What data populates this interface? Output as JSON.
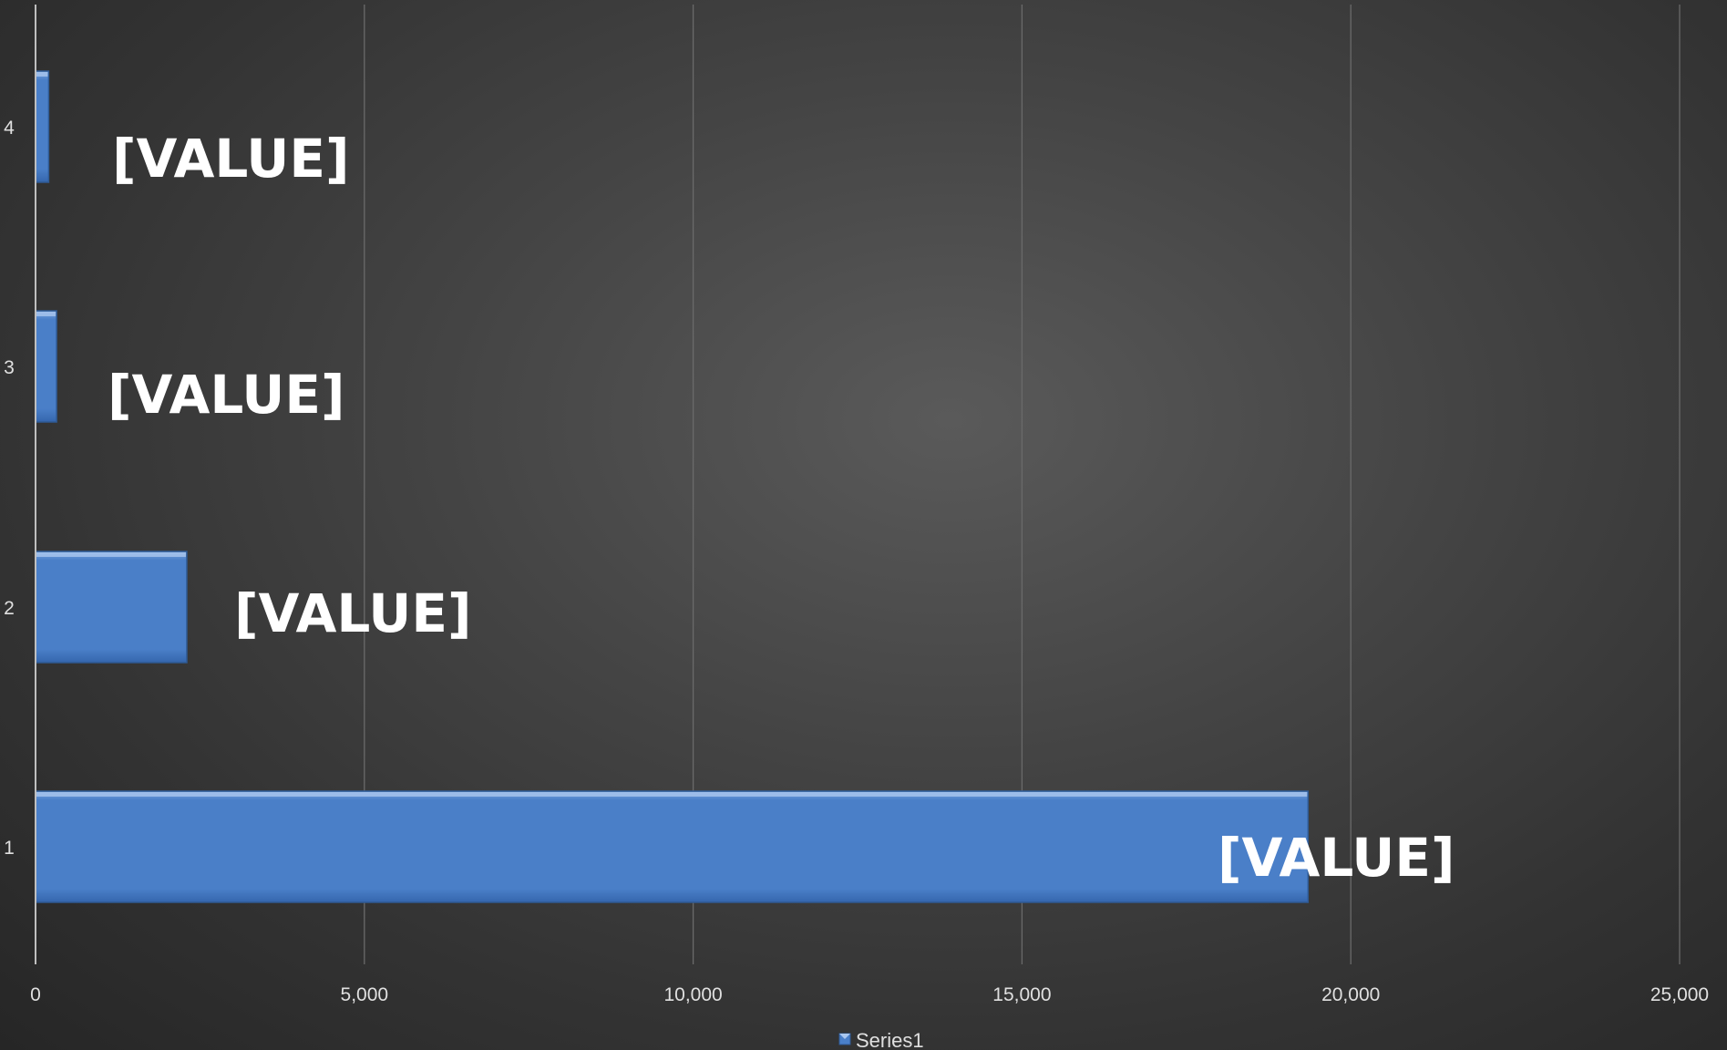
{
  "chart_data": {
    "type": "bar",
    "orientation": "horizontal",
    "categories": [
      "1",
      "2",
      "3",
      "4"
    ],
    "series": [
      {
        "name": "Series1",
        "values": [
          19350,
          2300,
          320,
          200
        ],
        "data_labels": [
          "[VALUE]",
          "[VALUE]",
          "[VALUE]",
          "[VALUE]"
        ]
      }
    ],
    "xlim": [
      0,
      25000
    ],
    "x_ticks": [
      "0",
      "5,000",
      "10,000",
      "15,000",
      "20,000",
      "25,000"
    ],
    "grid": "vertical",
    "legend": "bottom",
    "colors": {
      "bar": "#4a7fc8",
      "bar_top": "#7aa5e0",
      "bar_bottom": "#3566ad",
      "gridline": "#6a6a6a",
      "axis": "#bfbfbf",
      "text": "#e0e0e0",
      "data_label": "#ffffff"
    },
    "legend_icon": "legend-swatch-icon"
  }
}
